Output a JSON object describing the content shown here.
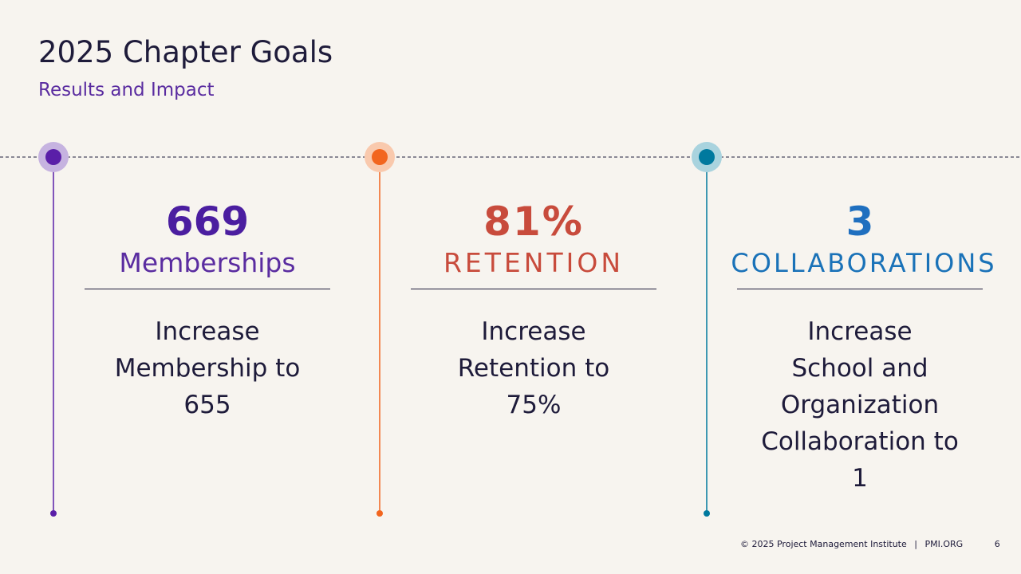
{
  "header": {
    "title": "2025 Chapter Goals",
    "subtitle": "Results and Impact"
  },
  "columns": [
    {
      "value": "669",
      "label": "Memberships",
      "description": [
        "Increase",
        "Membership to",
        "655"
      ]
    },
    {
      "value": "81%",
      "label": "RETENTION",
      "description": [
        "Increase",
        "Retention to",
        "75%"
      ]
    },
    {
      "value": "3",
      "label": "COLLABORATIONS",
      "description": [
        "Increase",
        "School and",
        "Organization",
        "Collaboration to",
        "1"
      ]
    }
  ],
  "footer": {
    "copyright": "© 2025 Project Management Institute",
    "site": "PMI.ORG",
    "page": "6"
  }
}
